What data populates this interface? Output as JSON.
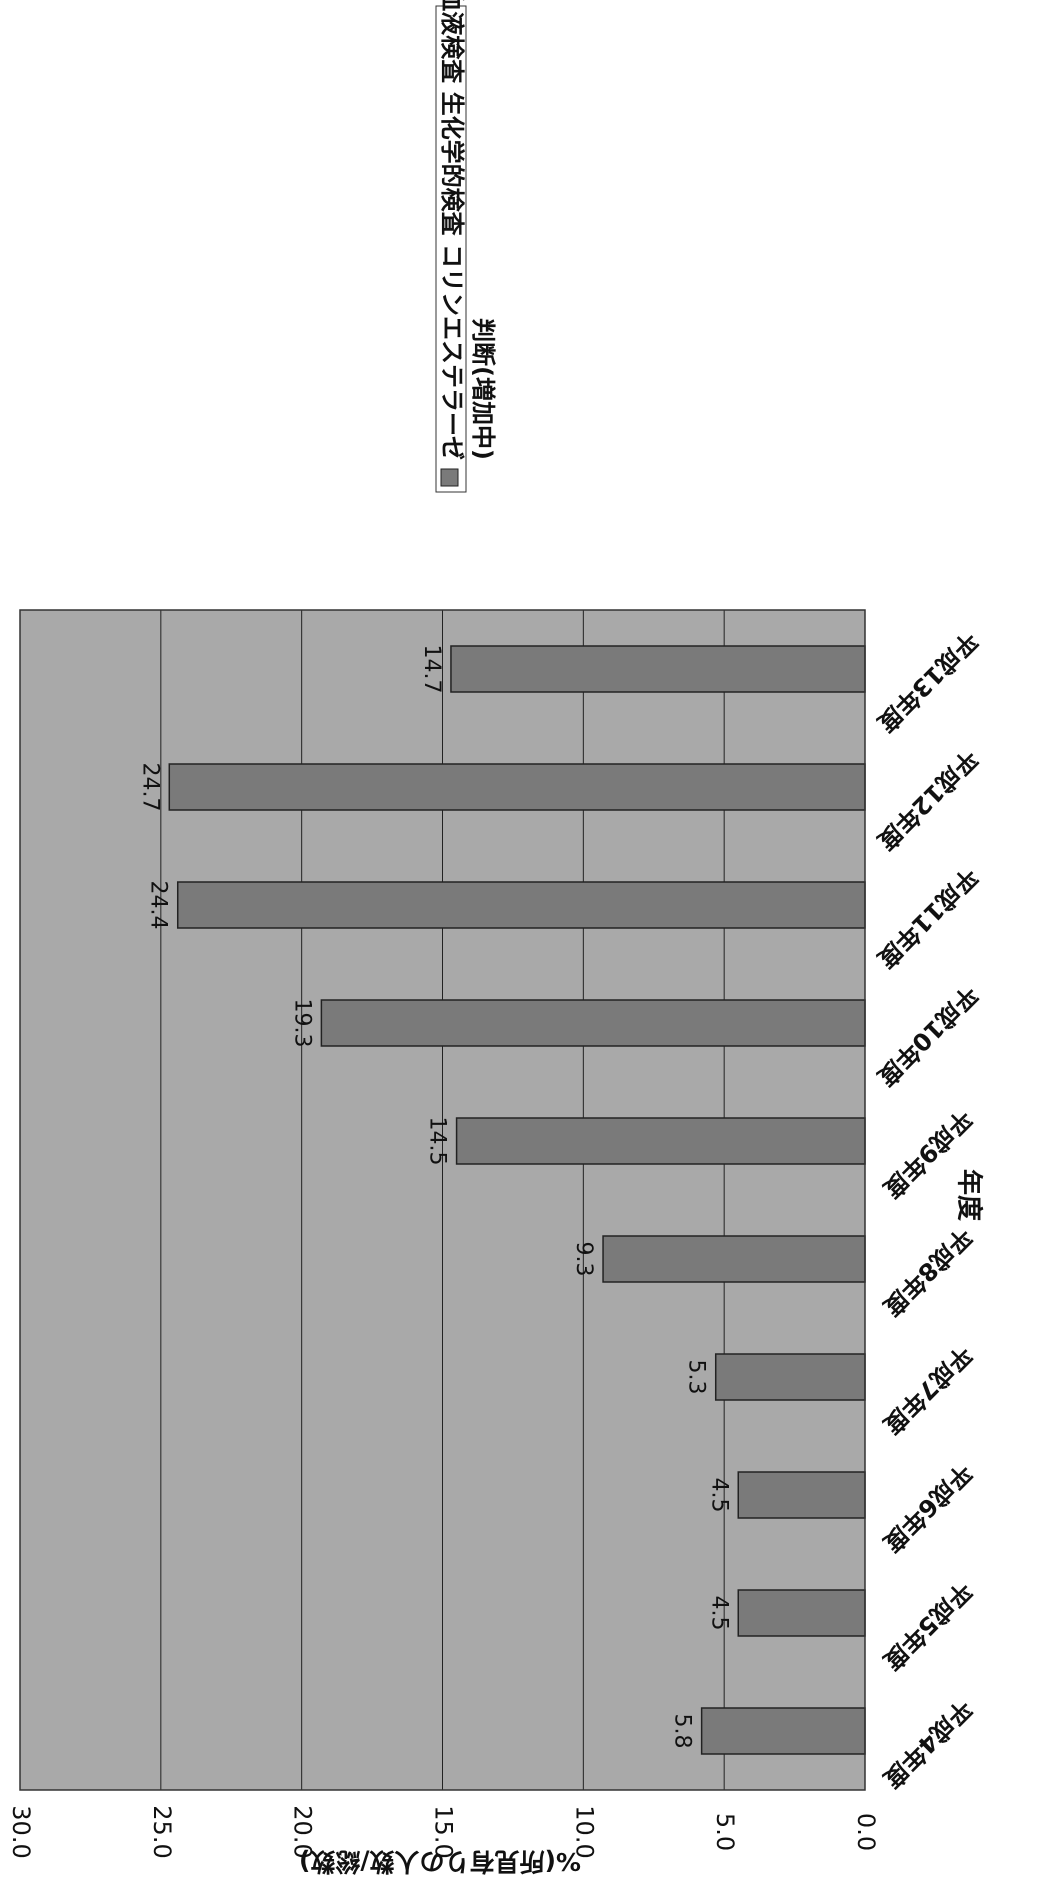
{
  "chart_data": {
    "type": "bar",
    "orientation": "rotated-90-clockwise",
    "title": "",
    "xlabel": "年度",
    "ylabel": "%(所見有りの人数/総数)",
    "categories": [
      "平成4年度",
      "平成5年度",
      "平成6年度",
      "平成7年度",
      "平成8年度",
      "平成9年度",
      "平成10年度",
      "平成11年度",
      "平成12年度",
      "平成13年度"
    ],
    "series": [
      {
        "name": "血液検査 生化学的検査 コリンエステラーゼ 判断(増加中)",
        "values": [
          5.8,
          4.5,
          4.5,
          5.3,
          9.3,
          14.5,
          19.3,
          24.4,
          24.7,
          14.7
        ],
        "data_labels": [
          "5.8",
          "4.5",
          "4.5",
          "5.3",
          "9.3",
          "14.5",
          "19.3",
          "24.4",
          "24.7",
          "14.7"
        ]
      }
    ],
    "ylim": [
      0,
      30
    ],
    "yticks": [
      "0.0",
      "5.0",
      "10.0",
      "15.0",
      "20.0",
      "25.0",
      "30.0"
    ],
    "grid": true,
    "legend": {
      "position": "top-right",
      "lines": [
        "血液検査 生化学的検査 コリンエステラーゼ",
        "判断(増加中)"
      ]
    },
    "colors": {
      "plot_bg": "#a9a9a9",
      "bar": "#7a7a7a",
      "grid": "#222222"
    }
  }
}
